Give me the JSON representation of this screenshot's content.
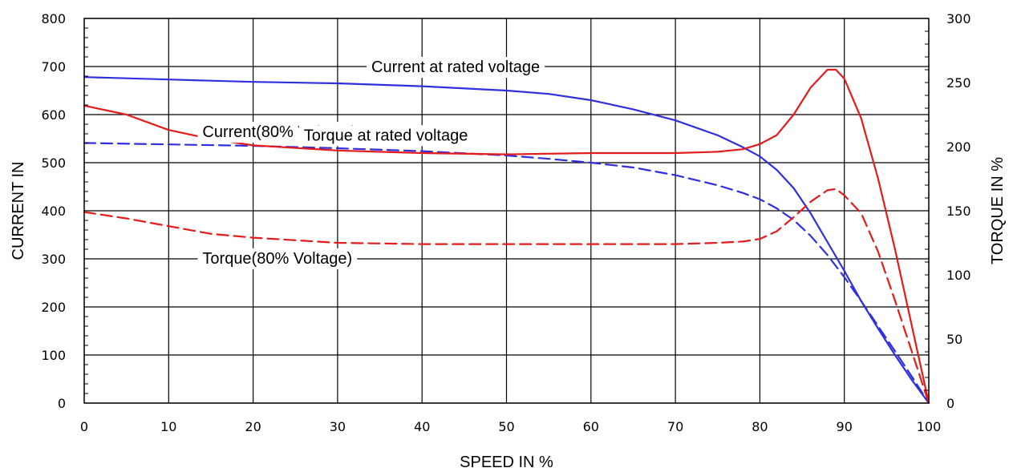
{
  "chart_data": {
    "type": "line",
    "title": "",
    "xlabel": "SPEED IN %",
    "ylabel_left": "CURRENT IN",
    "ylabel_right": "TORQUE IN %",
    "xlim": [
      0,
      100
    ],
    "ylim_left": [
      0,
      800
    ],
    "ylim_right": [
      0,
      300
    ],
    "x_ticks": [
      0,
      10,
      20,
      30,
      40,
      50,
      60,
      70,
      80,
      90,
      100
    ],
    "y_left_ticks": [
      0,
      100,
      200,
      300,
      400,
      500,
      600,
      700,
      800
    ],
    "y_right_ticks": [
      0,
      50,
      100,
      150,
      200,
      250,
      300
    ],
    "grid": true,
    "legend": "none",
    "series": [
      {
        "name": "Current at rated voltage",
        "axis": "left",
        "color": "#2f2fde",
        "dashed": false,
        "points": [
          [
            0,
            678
          ],
          [
            10,
            673
          ],
          [
            20,
            668
          ],
          [
            30,
            665
          ],
          [
            40,
            659
          ],
          [
            50,
            650
          ],
          [
            55,
            643
          ],
          [
            60,
            630
          ],
          [
            65,
            611
          ],
          [
            70,
            588
          ],
          [
            75,
            557
          ],
          [
            78,
            532
          ],
          [
            80,
            513
          ],
          [
            82,
            485
          ],
          [
            84,
            447
          ],
          [
            86,
            395
          ],
          [
            88,
            335
          ],
          [
            90,
            275
          ],
          [
            92,
            212
          ],
          [
            94,
            155
          ],
          [
            96,
            100
          ],
          [
            98,
            48
          ],
          [
            100,
            0
          ]
        ]
      },
      {
        "name": "Current(80% Voltage)",
        "axis": "left",
        "color": "#2f2fde",
        "dashed": true,
        "points": [
          [
            0,
            541
          ],
          [
            10,
            538
          ],
          [
            20,
            535
          ],
          [
            30,
            530
          ],
          [
            40,
            524
          ],
          [
            50,
            515
          ],
          [
            55,
            508
          ],
          [
            60,
            500
          ],
          [
            65,
            490
          ],
          [
            70,
            474
          ],
          [
            75,
            453
          ],
          [
            78,
            437
          ],
          [
            80,
            424
          ],
          [
            82,
            405
          ],
          [
            84,
            381
          ],
          [
            86,
            348
          ],
          [
            88,
            308
          ],
          [
            90,
            262
          ],
          [
            92,
            212
          ],
          [
            94,
            160
          ],
          [
            96,
            108
          ],
          [
            98,
            55
          ],
          [
            100,
            0
          ]
        ]
      },
      {
        "name": "Torque at rated voltage",
        "axis": "right",
        "color": "#e31b1b",
        "dashed": false,
        "points": [
          [
            0,
            232
          ],
          [
            5,
            225
          ],
          [
            10,
            213
          ],
          [
            15,
            206
          ],
          [
            20,
            201
          ],
          [
            30,
            197
          ],
          [
            40,
            195
          ],
          [
            50,
            194
          ],
          [
            60,
            195
          ],
          [
            70,
            195
          ],
          [
            75,
            196
          ],
          [
            78,
            198
          ],
          [
            80,
            202
          ],
          [
            82,
            209
          ],
          [
            84,
            225
          ],
          [
            86,
            246
          ],
          [
            88,
            260
          ],
          [
            89,
            260
          ],
          [
            90,
            253
          ],
          [
            92,
            222
          ],
          [
            94,
            175
          ],
          [
            96,
            120
          ],
          [
            98,
            60
          ],
          [
            100,
            0
          ]
        ]
      },
      {
        "name": "Torque(80% Voltage)",
        "axis": "right",
        "color": "#e31b1b",
        "dashed": true,
        "points": [
          [
            0,
            149
          ],
          [
            5,
            144
          ],
          [
            10,
            138
          ],
          [
            15,
            132
          ],
          [
            20,
            129
          ],
          [
            30,
            125
          ],
          [
            40,
            124
          ],
          [
            50,
            124
          ],
          [
            60,
            124
          ],
          [
            70,
            124
          ],
          [
            75,
            125
          ],
          [
            78,
            126
          ],
          [
            80,
            128
          ],
          [
            82,
            134
          ],
          [
            84,
            145
          ],
          [
            86,
            157
          ],
          [
            88,
            166
          ],
          [
            89,
            167
          ],
          [
            90,
            162
          ],
          [
            92,
            148
          ],
          [
            94,
            118
          ],
          [
            96,
            80
          ],
          [
            98,
            40
          ],
          [
            100,
            0
          ]
        ]
      }
    ],
    "annotations": [
      {
        "text": "Current at rated voltage",
        "x": 34,
        "y": 697
      },
      {
        "text": "Current(80% Voltage)",
        "x": 14,
        "y": 562
      },
      {
        "text": "Torque at rated voltage",
        "x": 26,
        "y": 555
      },
      {
        "text": "Torque(80% Voltage)",
        "x": 14,
        "y": 299
      }
    ]
  }
}
